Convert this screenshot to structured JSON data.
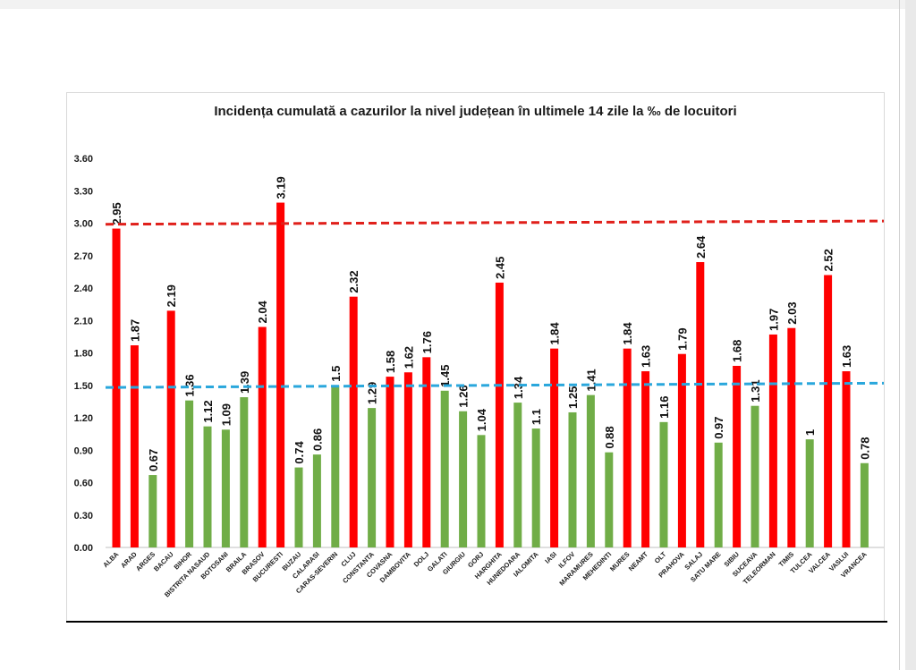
{
  "chart_data": {
    "type": "bar",
    "title": "Incidența cumulată a cazurilor la nivel județean în ultimele 14 zile la ‰ de locuitori",
    "xlabel": "",
    "ylabel": "",
    "ylim": [
      0,
      3.6
    ],
    "yticks": [
      "0.00",
      "0.30",
      "0.60",
      "0.90",
      "1.20",
      "1.50",
      "1.80",
      "2.10",
      "2.40",
      "2.70",
      "3.00",
      "3.30",
      "3.60"
    ],
    "grid": false,
    "categories": [
      "ALBA",
      "ARAD",
      "ARGES",
      "BACAU",
      "BIHOR",
      "BISTRITA NASAUD",
      "BOTOSANI",
      "BRAILA",
      "BRASOV",
      "BUCURESTI",
      "BUZAU",
      "CALARASI",
      "CARAS-SEVERIN",
      "CLUJ",
      "CONSTANTA",
      "COVASNA",
      "DAMBOVITA",
      "DOLJ",
      "GALATI",
      "GIURGIU",
      "GORJ",
      "HARGHITA",
      "HUNEDOARA",
      "IALOMITA",
      "IASI",
      "ILFOV",
      "MARAMURES",
      "MEHEDINTI",
      "MURES",
      "NEAMT",
      "OLT",
      "PRAHOVA",
      "SALAJ",
      "SATU MARE",
      "SIBIU",
      "SUCEAVA",
      "TELEORMAN",
      "TIMIS",
      "TULCEA",
      "VALCEA",
      "VASLUI",
      "VRANCEA"
    ],
    "values": [
      2.95,
      1.87,
      0.67,
      2.19,
      1.36,
      1.12,
      1.09,
      1.39,
      2.04,
      3.19,
      0.74,
      0.86,
      1.5,
      2.32,
      1.29,
      1.58,
      1.62,
      1.76,
      1.45,
      1.26,
      1.04,
      2.45,
      1.34,
      1.1,
      1.84,
      1.25,
      1.41,
      0.88,
      1.84,
      1.63,
      1.16,
      1.79,
      2.64,
      0.97,
      1.68,
      1.31,
      1.97,
      2.03,
      1,
      2.52,
      1.63,
      0.78
    ],
    "labels": [
      "2.95",
      "1.87",
      "0.67",
      "2.19",
      "1.36",
      "1.12",
      "1.09",
      "1.39",
      "2.04",
      "3.19",
      "0.74",
      "0.86",
      "1.5",
      "2.32",
      "1.29",
      "1.58",
      "1.62",
      "1.76",
      "1.45",
      "1.26",
      "1.04",
      "2.45",
      "1.34",
      "1.1",
      "1.84",
      "1.25",
      "1.41",
      "0.88",
      "1.84",
      "1.63",
      "1.16",
      "1.79",
      "2.64",
      "0.97",
      "1.68",
      "1.31",
      "1.97",
      "2.03",
      "1",
      "2.52",
      "1.63",
      "0.78"
    ],
    "colors": {
      "high": "#ff0000",
      "low": "#70ad47",
      "ref_upper": "#e0201b",
      "ref_lower": "#2aa7dc"
    },
    "threshold": 1.5,
    "reference_lines": [
      {
        "value_start": 2.99,
        "value_end": 3.02,
        "style": "dashed",
        "color": "#e0201b"
      },
      {
        "value_start": 1.48,
        "value_end": 1.52,
        "style": "dashed",
        "color": "#2aa7dc"
      }
    ]
  }
}
